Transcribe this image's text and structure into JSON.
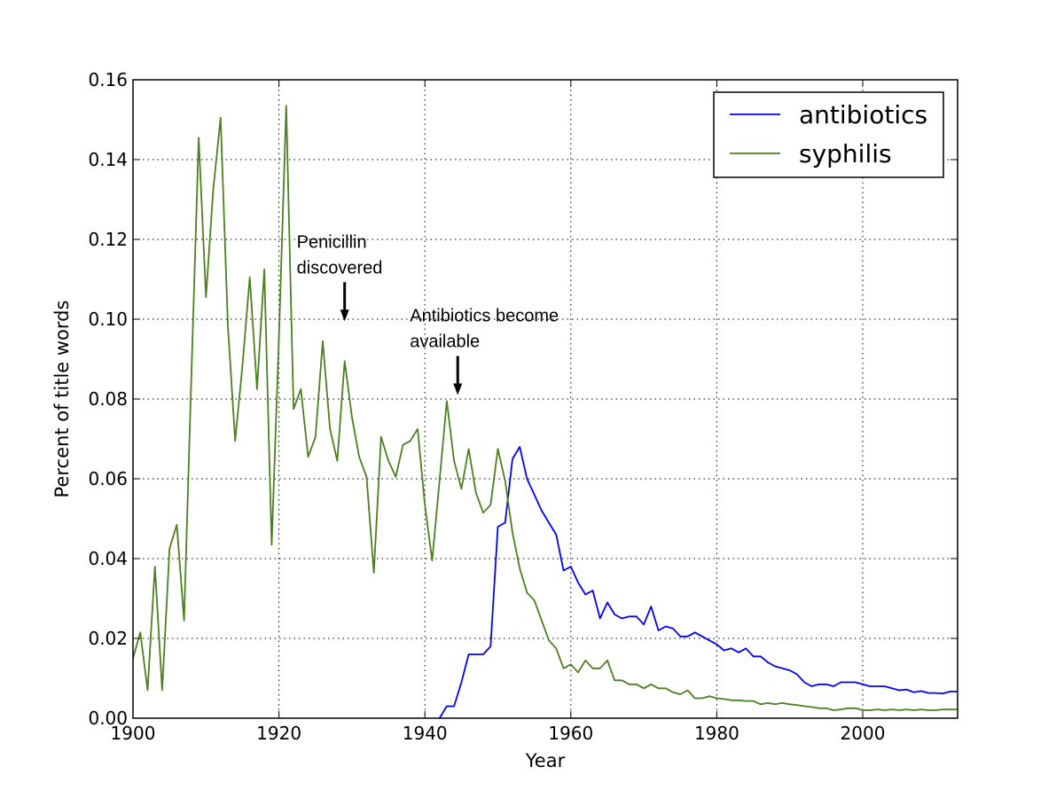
{
  "chart_data": {
    "type": "line",
    "xlabel": "Year",
    "ylabel": "Percent of title words",
    "xlim": [
      1900,
      2013
    ],
    "ylim": [
      0,
      0.16
    ],
    "xticks": [
      1900,
      1920,
      1940,
      1960,
      1980,
      2000
    ],
    "yticks": [
      0.0,
      0.02,
      0.04,
      0.06,
      0.08,
      0.1,
      0.12,
      0.14,
      0.16
    ],
    "xtick_labels": [
      "1900",
      "1920",
      "1940",
      "1960",
      "1980",
      "2000"
    ],
    "ytick_labels": [
      "0.00",
      "0.02",
      "0.04",
      "0.06",
      "0.08",
      "0.10",
      "0.12",
      "0.14",
      "0.16"
    ],
    "grid": true,
    "legend": "top-right",
    "series": [
      {
        "name": "antibiotics",
        "color": "#0000ff",
        "x": [
          1942,
          1943,
          1944,
          1945,
          1946,
          1947,
          1948,
          1949,
          1950,
          1951,
          1952,
          1953,
          1954,
          1955,
          1956,
          1957,
          1958,
          1959,
          1960,
          1961,
          1962,
          1963,
          1964,
          1965,
          1966,
          1967,
          1968,
          1969,
          1970,
          1971,
          1972,
          1973,
          1974,
          1975,
          1976,
          1977,
          1978,
          1979,
          1980,
          1981,
          1982,
          1983,
          1984,
          1985,
          1986,
          1987,
          1988,
          1989,
          1990,
          1991,
          1992,
          1993,
          1994,
          1995,
          1996,
          1997,
          1998,
          1999,
          2000,
          2001,
          2002,
          2003,
          2004,
          2005,
          2006,
          2007,
          2008,
          2009,
          2010,
          2011,
          2012,
          2013
        ],
        "y": [
          0.0,
          0.003,
          0.003,
          0.009,
          0.016,
          0.016,
          0.016,
          0.018,
          0.048,
          0.049,
          0.065,
          0.068,
          0.06,
          0.056,
          0.052,
          0.049,
          0.046,
          0.037,
          0.038,
          0.034,
          0.031,
          0.032,
          0.025,
          0.029,
          0.026,
          0.025,
          0.0255,
          0.0255,
          0.0235,
          0.028,
          0.022,
          0.023,
          0.0225,
          0.0205,
          0.0205,
          0.0215,
          0.0205,
          0.0195,
          0.0185,
          0.017,
          0.0175,
          0.0165,
          0.0175,
          0.0155,
          0.0155,
          0.014,
          0.013,
          0.0125,
          0.012,
          0.011,
          0.009,
          0.008,
          0.0085,
          0.0085,
          0.008,
          0.009,
          0.009,
          0.009,
          0.0085,
          0.008,
          0.008,
          0.008,
          0.0075,
          0.007,
          0.0072,
          0.0065,
          0.0068,
          0.0063,
          0.0063,
          0.0062,
          0.0067,
          0.0067
        ]
      },
      {
        "name": "syphilis",
        "color": "#4b7f20",
        "x": [
          1900,
          1901,
          1902,
          1903,
          1904,
          1905,
          1906,
          1907,
          1908,
          1909,
          1910,
          1911,
          1912,
          1913,
          1914,
          1915,
          1916,
          1917,
          1918,
          1919,
          1920,
          1921,
          1922,
          1923,
          1924,
          1925,
          1926,
          1927,
          1928,
          1929,
          1930,
          1931,
          1932,
          1933,
          1934,
          1935,
          1936,
          1937,
          1938,
          1939,
          1940,
          1941,
          1942,
          1943,
          1944,
          1945,
          1946,
          1947,
          1948,
          1949,
          1950,
          1951,
          1952,
          1953,
          1954,
          1955,
          1956,
          1957,
          1958,
          1959,
          1960,
          1961,
          1962,
          1963,
          1964,
          1965,
          1966,
          1967,
          1968,
          1969,
          1970,
          1971,
          1972,
          1973,
          1974,
          1975,
          1976,
          1977,
          1978,
          1979,
          1980,
          1981,
          1982,
          1983,
          1984,
          1985,
          1986,
          1987,
          1988,
          1989,
          1990,
          1991,
          1992,
          1993,
          1994,
          1995,
          1996,
          1997,
          1998,
          1999,
          2000,
          2001,
          2002,
          2003,
          2004,
          2005,
          2006,
          2007,
          2008,
          2009,
          2010,
          2011,
          2012,
          2013
        ],
        "y": [
          0.015,
          0.0215,
          0.007,
          0.038,
          0.007,
          0.0425,
          0.0485,
          0.0245,
          0.0855,
          0.1455,
          0.1055,
          0.1325,
          0.1505,
          0.0985,
          0.0695,
          0.0885,
          0.1105,
          0.0825,
          0.1125,
          0.0435,
          0.0955,
          0.1535,
          0.0775,
          0.0825,
          0.0655,
          0.0705,
          0.0945,
          0.0725,
          0.0645,
          0.0895,
          0.0755,
          0.0655,
          0.0605,
          0.0365,
          0.0705,
          0.0645,
          0.0605,
          0.0685,
          0.0695,
          0.0725,
          0.0535,
          0.0395,
          0.0595,
          0.0795,
          0.0645,
          0.0575,
          0.0675,
          0.0565,
          0.0515,
          0.0535,
          0.0675,
          0.0595,
          0.0465,
          0.0375,
          0.0315,
          0.0295,
          0.0245,
          0.0195,
          0.0175,
          0.0125,
          0.0135,
          0.0115,
          0.0145,
          0.0125,
          0.0125,
          0.0145,
          0.0095,
          0.0095,
          0.0085,
          0.0085,
          0.0075,
          0.0085,
          0.0075,
          0.0075,
          0.0065,
          0.006,
          0.007,
          0.005,
          0.005,
          0.0055,
          0.005,
          0.0048,
          0.0045,
          0.0045,
          0.0043,
          0.0043,
          0.0035,
          0.0038,
          0.0035,
          0.0038,
          0.0035,
          0.0033,
          0.003,
          0.0028,
          0.0025,
          0.0025,
          0.002,
          0.0022,
          0.0025,
          0.0025,
          0.002,
          0.002,
          0.0022,
          0.002,
          0.0022,
          0.002,
          0.0022,
          0.002,
          0.0022,
          0.002,
          0.002,
          0.0022,
          0.0022,
          0.0022
        ]
      }
    ],
    "annotations": [
      {
        "lines": [
          "Penicillin",
          "discovered"
        ],
        "x": 1929,
        "arrow_tip_y": 0.0995
      },
      {
        "lines": [
          "Antibiotics become",
          "available"
        ],
        "x": 1944.5,
        "arrow_tip_y": 0.081
      }
    ]
  }
}
